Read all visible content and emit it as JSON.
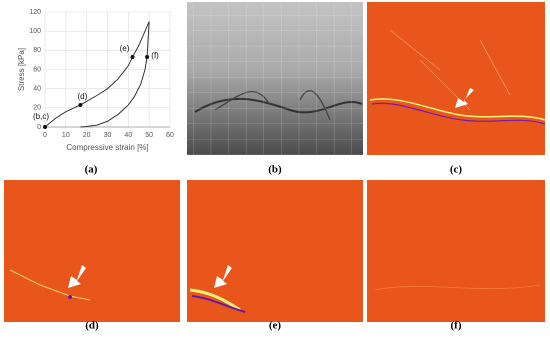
{
  "chart_data": {
    "type": "line",
    "x_label": "Compressive strain [%]",
    "y_label": "Stress [kPa]",
    "xlim": [
      0,
      60
    ],
    "xticks": [
      0,
      10,
      20,
      30,
      40,
      50,
      60
    ],
    "ylim": [
      0,
      120
    ],
    "yticks": [
      0,
      20,
      40,
      60,
      80,
      100,
      120
    ],
    "grid": true,
    "series": [
      {
        "color": "#333333",
        "x": [
          0,
          5,
          10,
          17,
          25,
          30,
          35,
          40,
          42,
          45,
          48,
          50
        ],
        "values": [
          0,
          9,
          16,
          23,
          33,
          40,
          50,
          64,
          73,
          85,
          100,
          110
        ]
      },
      {
        "color": "#333333",
        "x": [
          50,
          49,
          48,
          46,
          43,
          40,
          35,
          30,
          25,
          20,
          17
        ],
        "values": [
          110,
          73,
          60,
          45,
          32,
          23,
          13,
          6,
          2,
          0.5,
          0
        ]
      }
    ],
    "points": [
      {
        "label": "(b,c)",
        "x": 0,
        "y": 0
      },
      {
        "label": "(d)",
        "x": 17,
        "y": 23
      },
      {
        "label": "(e)",
        "x": 42,
        "y": 73
      },
      {
        "label": "(f)",
        "x": 49,
        "y": 73
      }
    ]
  },
  "captions": [
    "(a)",
    "(b)",
    "(c)",
    "(d)",
    "(e)",
    "(f)"
  ]
}
